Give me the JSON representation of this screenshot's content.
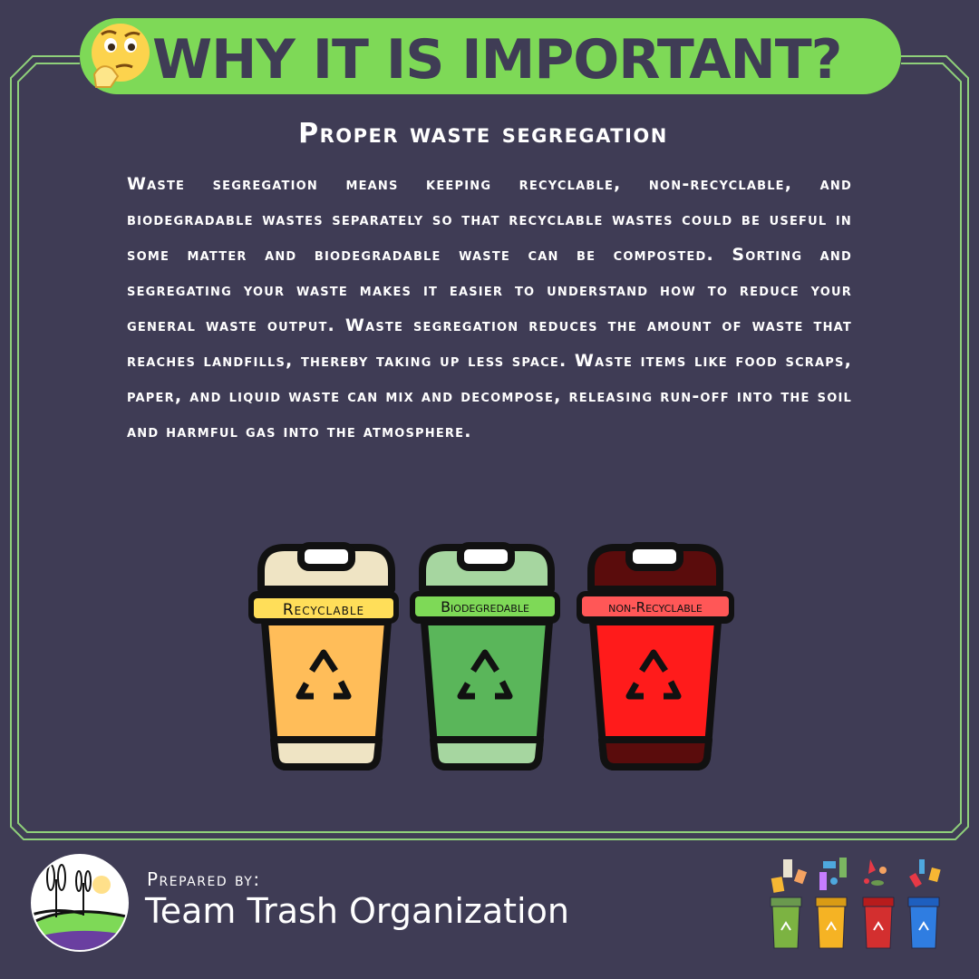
{
  "header": {
    "title": "WHY IT IS IMPORTANT?",
    "emoji_icon": "thinking-face-icon"
  },
  "section": {
    "subtitle": "Proper waste segregation",
    "body": "Waste segregation means keeping recyclable, non-recyclable, and biodegradable wastes separately so that recyclable wastes could be useful in some matter and biodegradable waste can be composted. Sorting and segregating your waste makes it easier to understand how to reduce your general waste output. Waste segregation reduces the amount of waste that reaches landfills, thereby taking up less space. Waste items like food scraps, paper, and liquid waste can mix and decompose, releasing run-off into the soil and harmful gas into the atmosphere."
  },
  "bins": [
    {
      "label": "Recyclable",
      "icon": "recycle-icon",
      "body_color": "#ffbd59",
      "top_color": "#efe4c4",
      "label_color": "#ffde59"
    },
    {
      "label": "Biodegredable",
      "icon": "recycle-icon",
      "body_color": "#5ab65a",
      "top_color": "#a6d6a0",
      "label_color": "#7ed957"
    },
    {
      "label": "non-Recyclable",
      "icon": "recycle-icon",
      "body_color": "#ff1b1b",
      "top_color": "#5a0c0c",
      "label_color": "#ff5757"
    }
  ],
  "footer": {
    "prepared_label": "Prepared by:",
    "organization": "Team Trash Organization",
    "logo_icon": "windmill-landscape-logo",
    "bins_icon": "trash-bins-illustration"
  },
  "colors": {
    "background": "#3f3c55",
    "accent_green": "#7ed957",
    "frame_line": "#8fd07a"
  }
}
